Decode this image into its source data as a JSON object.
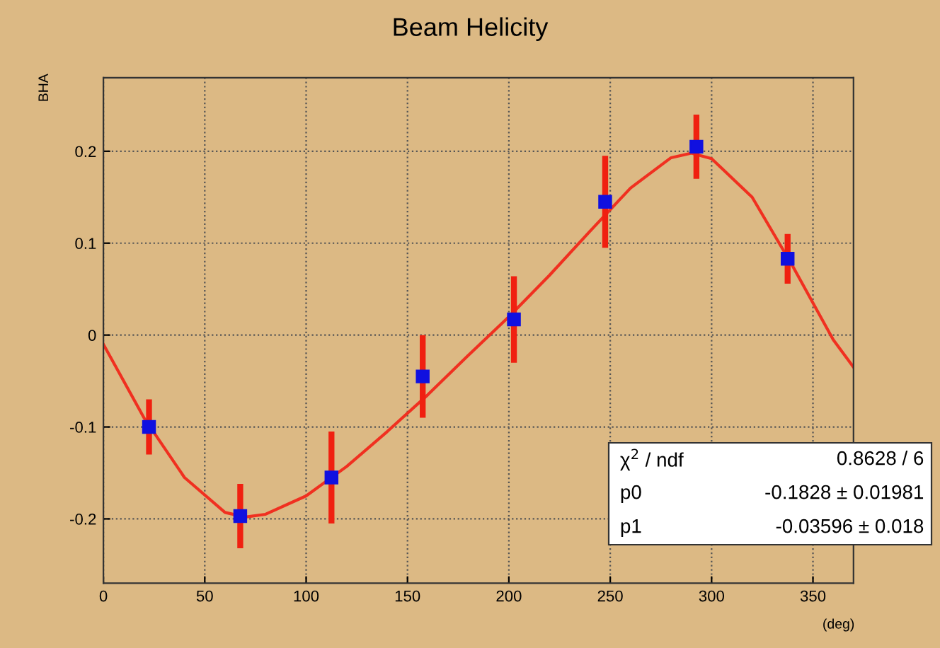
{
  "chart_data": {
    "type": "scatter",
    "title": "Beam Helicity",
    "xlabel": "(deg)",
    "ylabel": "BHA",
    "x": [
      22.5,
      67.5,
      112.5,
      157.5,
      202.5,
      247.5,
      292.5,
      337.5
    ],
    "series": [
      {
        "color": "#1010e0",
        "marker": "square",
        "values": [
          -0.1,
          -0.197,
          -0.155,
          -0.045,
          0.017,
          0.145,
          0.205,
          0.083
        ],
        "errors": [
          0.03,
          0.035,
          0.05,
          0.045,
          0.047,
          0.05,
          0.035,
          0.027
        ]
      },
      {
        "type": "line",
        "color": "#f03020",
        "marker": "none",
        "line_style": "solid",
        "x": [
          0,
          20,
          40,
          60,
          70,
          80,
          100,
          120,
          140,
          160,
          180,
          200,
          220,
          240,
          260,
          280,
          290,
          300,
          320,
          340,
          360,
          370
        ],
        "values": [
          -0.01,
          -0.09,
          -0.155,
          -0.193,
          -0.198,
          -0.195,
          -0.175,
          -0.143,
          -0.105,
          -0.065,
          -0.022,
          0.02,
          0.065,
          0.113,
          0.16,
          0.193,
          0.198,
          0.192,
          0.15,
          0.075,
          -0.005,
          -0.035
        ]
      }
    ],
    "xlim": [
      0,
      370
    ],
    "xticks": [
      0,
      50,
      100,
      150,
      200,
      250,
      300,
      350
    ],
    "ylim": [
      -0.27,
      0.28
    ],
    "yticks": [
      -0.2,
      -0.1,
      {
        "value": 0,
        "label": "0"
      },
      0.1,
      0.2
    ],
    "grid": true,
    "legend": false,
    "annotations": [
      "χ$^{2}$ / ndf",
      "0.8628 / 6",
      "p0",
      "-0.1828 ± 0.01981",
      "p1",
      "-0.03596 ± 0.018"
    ]
  }
}
